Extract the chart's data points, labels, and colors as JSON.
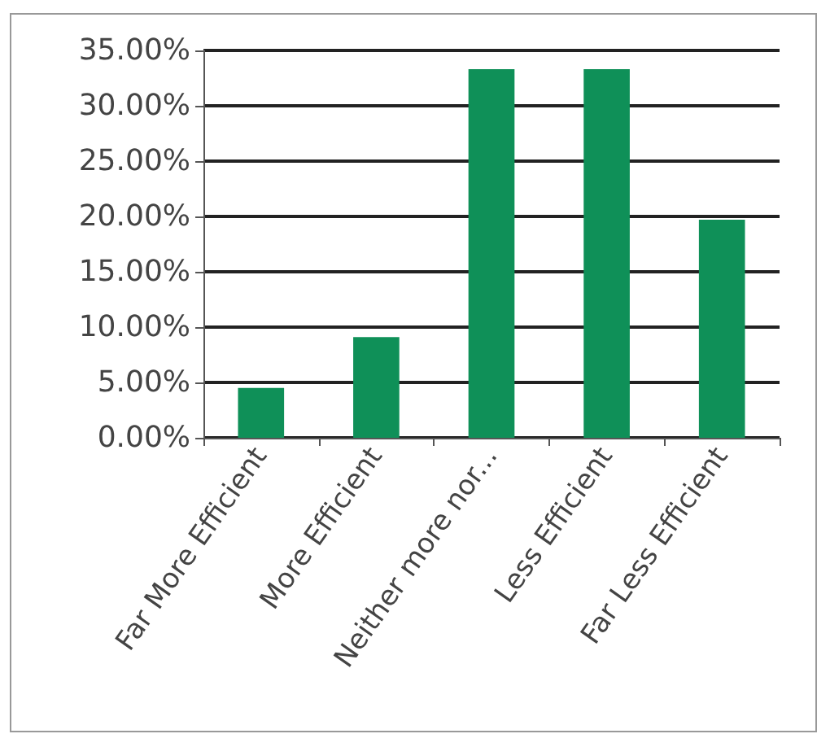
{
  "chart_data": {
    "type": "bar",
    "categories": [
      "Far More Efficient",
      "More Efficient",
      "Neither more nor...",
      "Less Efficient",
      "Far Less Efficient"
    ],
    "values": [
      4.5,
      9.1,
      33.3,
      33.3,
      19.7
    ],
    "color": "#0f9058",
    "ylim": [
      0,
      35
    ],
    "yticks": [
      {
        "value": 0,
        "label": "0.00%"
      },
      {
        "value": 5,
        "label": "5.00%"
      },
      {
        "value": 10,
        "label": "10.00%"
      },
      {
        "value": 15,
        "label": "15.00%"
      },
      {
        "value": 20,
        "label": "20.00%"
      },
      {
        "value": 25,
        "label": "25.00%"
      },
      {
        "value": 30,
        "label": "30.00%"
      },
      {
        "value": 35,
        "label": "35.00%"
      }
    ],
    "grid": "y"
  }
}
